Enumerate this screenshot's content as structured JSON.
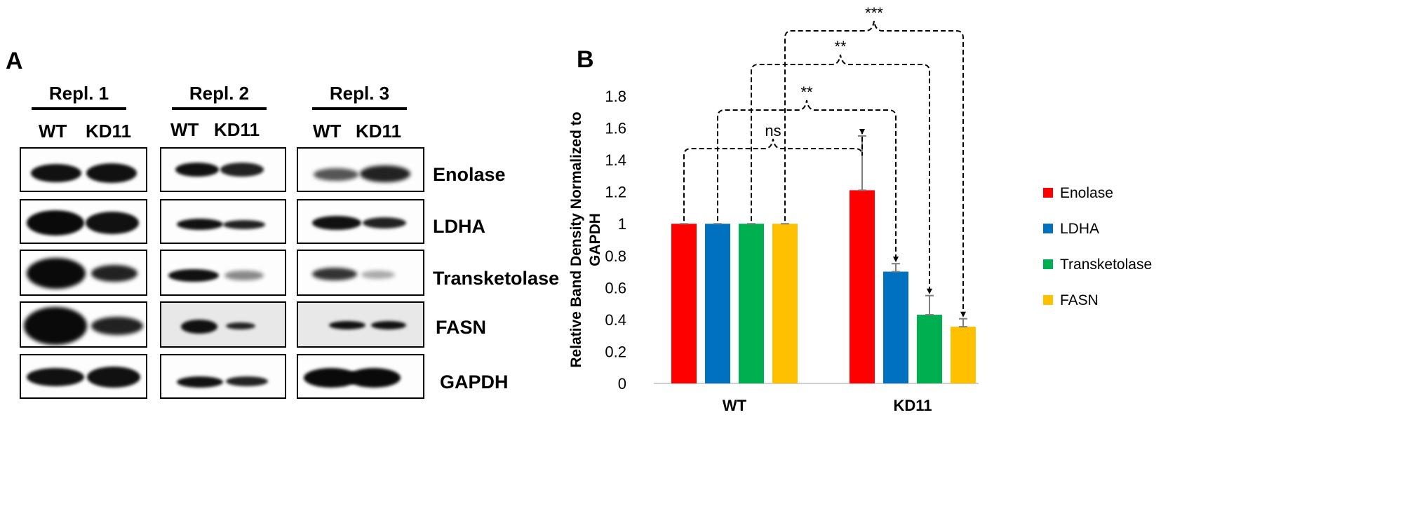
{
  "panel_a": {
    "letter": "A",
    "replicates": [
      {
        "title": "Repl. 1",
        "lanes": [
          "WT",
          "KD11"
        ]
      },
      {
        "title": "Repl. 2",
        "lanes": [
          "WT",
          "KD11"
        ]
      },
      {
        "title": "Repl. 3",
        "lanes": [
          "WT",
          "KD11"
        ]
      }
    ],
    "proteins": [
      "Enolase",
      "LDHA",
      "Transketolase",
      "FASN",
      "GAPDH"
    ]
  },
  "panel_b": {
    "letter": "B"
  },
  "chart_data": {
    "type": "bar",
    "categories": [
      "WT",
      "KD11"
    ],
    "series": [
      {
        "name": "Enolase",
        "values": [
          1.0,
          1.21
        ],
        "errors": [
          0.0,
          0.34
        ]
      },
      {
        "name": "LDHA",
        "values": [
          1.0,
          0.7
        ],
        "errors": [
          0.0,
          0.05
        ]
      },
      {
        "name": "Transketolase",
        "values": [
          1.0,
          0.43
        ],
        "errors": [
          0.0,
          0.12
        ]
      },
      {
        "name": "FASN",
        "values": [
          1.0,
          0.355
        ],
        "errors": [
          0.0,
          0.05
        ]
      }
    ],
    "ylabel": "Relative Band Density Normalized to GAPDH",
    "ylim": [
      0,
      1.8
    ],
    "yticks": [
      "0",
      "0.2",
      "0.4",
      "0.6",
      "0.8",
      "1",
      "1.2",
      "1.4",
      "1.6",
      "1.8"
    ],
    "legend_position": "right",
    "significance": [
      "ns",
      "**",
      "**",
      "***"
    ],
    "colors": [
      "#ff0000",
      "#0070c0",
      "#00b050",
      "#ffc000"
    ]
  }
}
